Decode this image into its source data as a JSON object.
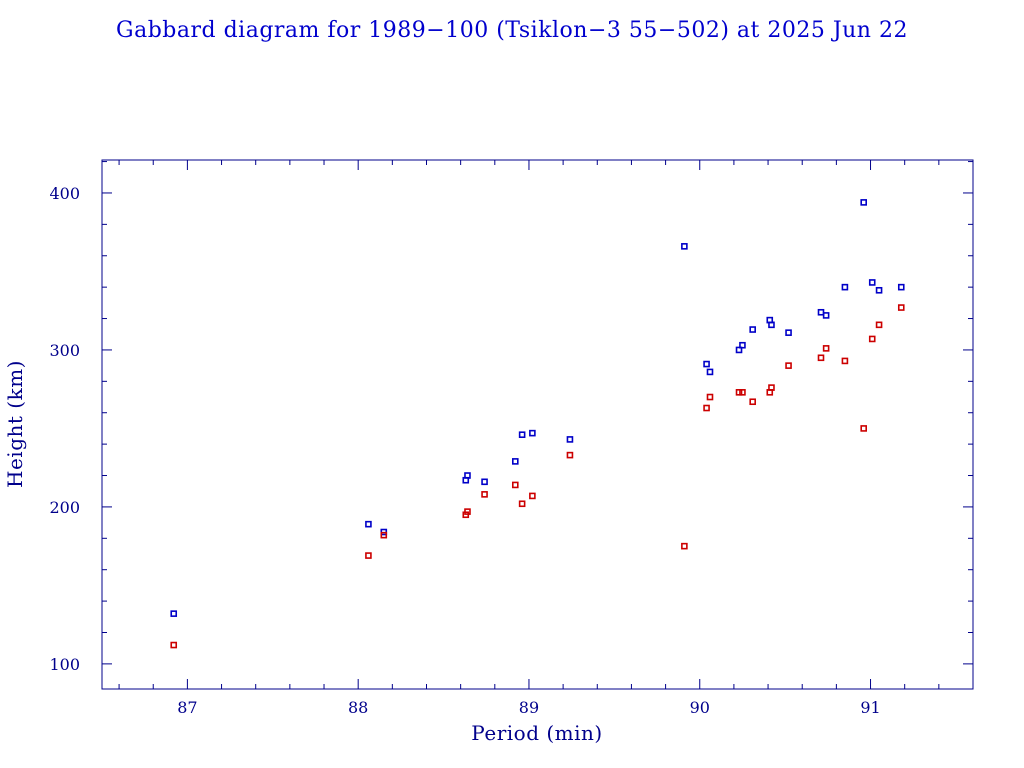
{
  "chart_data": {
    "type": "scatter",
    "title": "Gabbard diagram for 1989−100 (Tsiklon−3 55−502) at 2025 Jun 22",
    "xlabel": "Period (min)",
    "ylabel": "Height (km)",
    "xlim": [
      86.5,
      91.6
    ],
    "ylim": [
      84,
      421
    ],
    "xticks": [
      87,
      88,
      89,
      90,
      91
    ],
    "xtick_labels": [
      "87",
      "88",
      "89",
      "90",
      "91"
    ],
    "yticks": [
      100,
      200,
      300,
      400
    ],
    "ytick_labels": [
      "100",
      "200",
      "300",
      "400"
    ],
    "x_minor_step": 0.2,
    "y_minor_step": 20,
    "grid": false,
    "legend": "none",
    "colors": {
      "axes": "#00008b",
      "title": "#0000cd",
      "apogee": "#0000c8",
      "perigee": "#cc0000"
    },
    "series": [
      {
        "name": "apogee",
        "color": "#0000c8",
        "points": [
          [
            86.92,
            132
          ],
          [
            88.06,
            189
          ],
          [
            88.15,
            184
          ],
          [
            88.63,
            217
          ],
          [
            88.64,
            220
          ],
          [
            88.74,
            216
          ],
          [
            88.92,
            229
          ],
          [
            88.96,
            246
          ],
          [
            89.02,
            247
          ],
          [
            89.24,
            243
          ],
          [
            89.91,
            366
          ],
          [
            90.04,
            291
          ],
          [
            90.06,
            286
          ],
          [
            90.23,
            300
          ],
          [
            90.25,
            303
          ],
          [
            90.31,
            313
          ],
          [
            90.41,
            319
          ],
          [
            90.42,
            316
          ],
          [
            90.52,
            311
          ],
          [
            90.71,
            324
          ],
          [
            90.74,
            322
          ],
          [
            90.85,
            340
          ],
          [
            90.96,
            394
          ],
          [
            91.01,
            343
          ],
          [
            91.05,
            338
          ],
          [
            91.18,
            340
          ]
        ]
      },
      {
        "name": "perigee",
        "color": "#cc0000",
        "points": [
          [
            86.92,
            112
          ],
          [
            88.06,
            169
          ],
          [
            88.15,
            182
          ],
          [
            88.63,
            195
          ],
          [
            88.64,
            197
          ],
          [
            88.74,
            208
          ],
          [
            88.92,
            214
          ],
          [
            88.96,
            202
          ],
          [
            89.02,
            207
          ],
          [
            89.24,
            233
          ],
          [
            89.91,
            175
          ],
          [
            90.04,
            263
          ],
          [
            90.06,
            270
          ],
          [
            90.23,
            273
          ],
          [
            90.25,
            273
          ],
          [
            90.31,
            267
          ],
          [
            90.41,
            273
          ],
          [
            90.42,
            276
          ],
          [
            90.52,
            290
          ],
          [
            90.71,
            295
          ],
          [
            90.74,
            301
          ],
          [
            90.85,
            293
          ],
          [
            90.96,
            250
          ],
          [
            91.01,
            307
          ],
          [
            91.05,
            316
          ],
          [
            91.18,
            327
          ]
        ]
      }
    ]
  }
}
